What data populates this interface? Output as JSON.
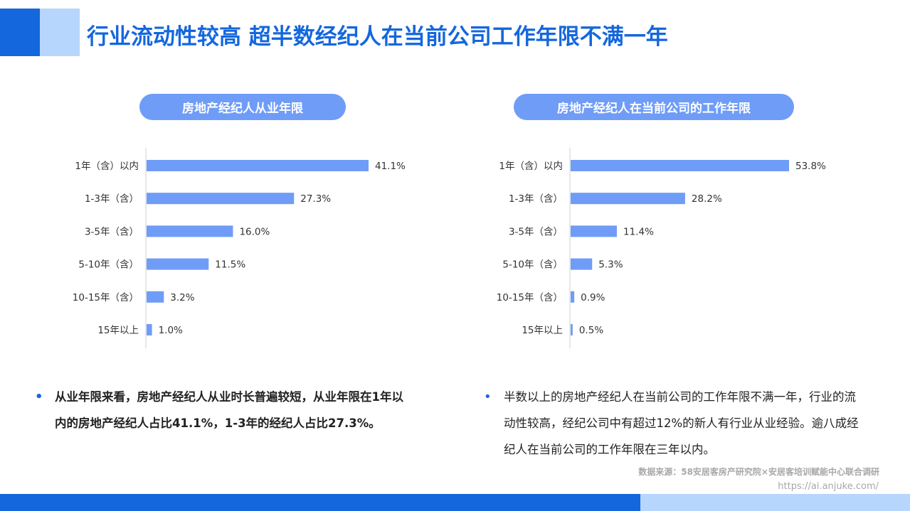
{
  "title": "行业流动性较高 超半数经纪人在当前公司工作年限不满一年",
  "chart_data": [
    {
      "type": "bar",
      "orientation": "horizontal",
      "title": "房地产经纪人从业年限",
      "categories": [
        "1年（含）以内",
        "1-3年（含）",
        "3-5年（含）",
        "5-10年（含）",
        "10-15年（含）",
        "15年以上"
      ],
      "values": [
        41.1,
        27.3,
        16.0,
        11.5,
        3.2,
        1.0
      ],
      "labels": [
        "41.1%",
        "27.3%",
        "16.0%",
        "11.5%",
        "3.2%",
        "1.0%"
      ],
      "color": "#6f9cf7"
    },
    {
      "type": "bar",
      "orientation": "horizontal",
      "title": "房地产经纪人在当前公司的工作年限",
      "categories": [
        "1年（含）以内",
        "1-3年（含）",
        "3-5年（含）",
        "5-10年（含）",
        "10-15年（含）",
        "15年以上"
      ],
      "values": [
        53.8,
        28.2,
        11.4,
        5.3,
        0.9,
        0.5
      ],
      "labels": [
        "53.8%",
        "28.2%",
        "11.4%",
        "5.3%",
        "0.9%",
        "0.5%"
      ],
      "color": "#6f9cf7"
    }
  ],
  "bullets": [
    "从业年限来看，房地产经纪人从业时长普遍较短，从业年限在1年以内的房地产经纪人占比41.1%，1-3年的经纪人占比27.3%。",
    "半数以上的房地产经纪人在当前公司的工作年限不满一年，行业的流动性较高，经纪公司中有超过12%的新人有行业从业经验。逾八成经纪人在当前公司的工作年限在三年以内。"
  ],
  "source": "数据来源：58安居客房产研究院×安居客培训赋能中心联合调研",
  "url": "https://ai.anjuke.com/"
}
